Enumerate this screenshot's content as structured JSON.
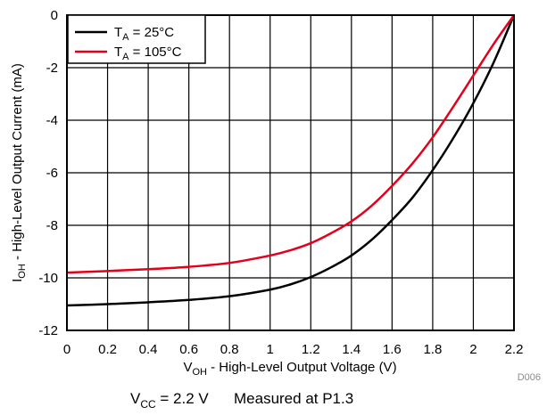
{
  "chart_data": {
    "type": "line",
    "title": "",
    "xlabel": {
      "main": "V",
      "sub": "OH",
      "rest": " - High-Level Output Voltage (V)"
    },
    "ylabel": {
      "main": "I",
      "sub": "OH",
      "rest": " - High-Level Output Current (mA)"
    },
    "xlim": [
      0,
      2.2
    ],
    "ylim": [
      -12,
      0
    ],
    "x_ticks": [
      "0",
      "0.2",
      "0.4",
      "0.6",
      "0.8",
      "1",
      "1.2",
      "1.4",
      "1.6",
      "1.8",
      "2",
      "2.2"
    ],
    "y_ticks": [
      "0",
      "-2",
      "-4",
      "-6",
      "-8",
      "-10",
      "-12"
    ],
    "x_tick_values": [
      0,
      0.2,
      0.4,
      0.6,
      0.8,
      1.0,
      1.2,
      1.4,
      1.6,
      1.8,
      2.0,
      2.2
    ],
    "y_tick_values": [
      0,
      -2,
      -4,
      -6,
      -8,
      -10,
      -12
    ],
    "grid": true,
    "legend_position": "top-left",
    "series": [
      {
        "name": {
          "main": "T",
          "sub": "A",
          "rest": " = 25°C"
        },
        "color": "#000000",
        "x": [
          0,
          0.2,
          0.4,
          0.6,
          0.8,
          1.0,
          1.1,
          1.2,
          1.3,
          1.4,
          1.5,
          1.6,
          1.7,
          1.8,
          1.9,
          2.0,
          2.1,
          2.2
        ],
        "y": [
          -11.05,
          -11.0,
          -10.93,
          -10.84,
          -10.7,
          -10.45,
          -10.25,
          -9.97,
          -9.6,
          -9.15,
          -8.55,
          -7.8,
          -6.95,
          -5.9,
          -4.7,
          -3.35,
          -1.8,
          0
        ]
      },
      {
        "name": {
          "main": "T",
          "sub": "A",
          "rest": " = 105°C"
        },
        "color": "#e4001b",
        "x": [
          0,
          0.2,
          0.4,
          0.6,
          0.8,
          1.0,
          1.1,
          1.2,
          1.3,
          1.4,
          1.5,
          1.6,
          1.7,
          1.8,
          1.9,
          2.0,
          2.1,
          2.2
        ],
        "y": [
          -9.8,
          -9.74,
          -9.67,
          -9.58,
          -9.43,
          -9.15,
          -8.95,
          -8.68,
          -8.3,
          -7.85,
          -7.25,
          -6.5,
          -5.65,
          -4.65,
          -3.5,
          -2.3,
          -1.1,
          0
        ]
      }
    ],
    "caption": {
      "main": "V",
      "sub": "CC",
      "rest": " = 2.2 V",
      "note": "Measured at P1.3"
    },
    "figure_id": "D006"
  }
}
